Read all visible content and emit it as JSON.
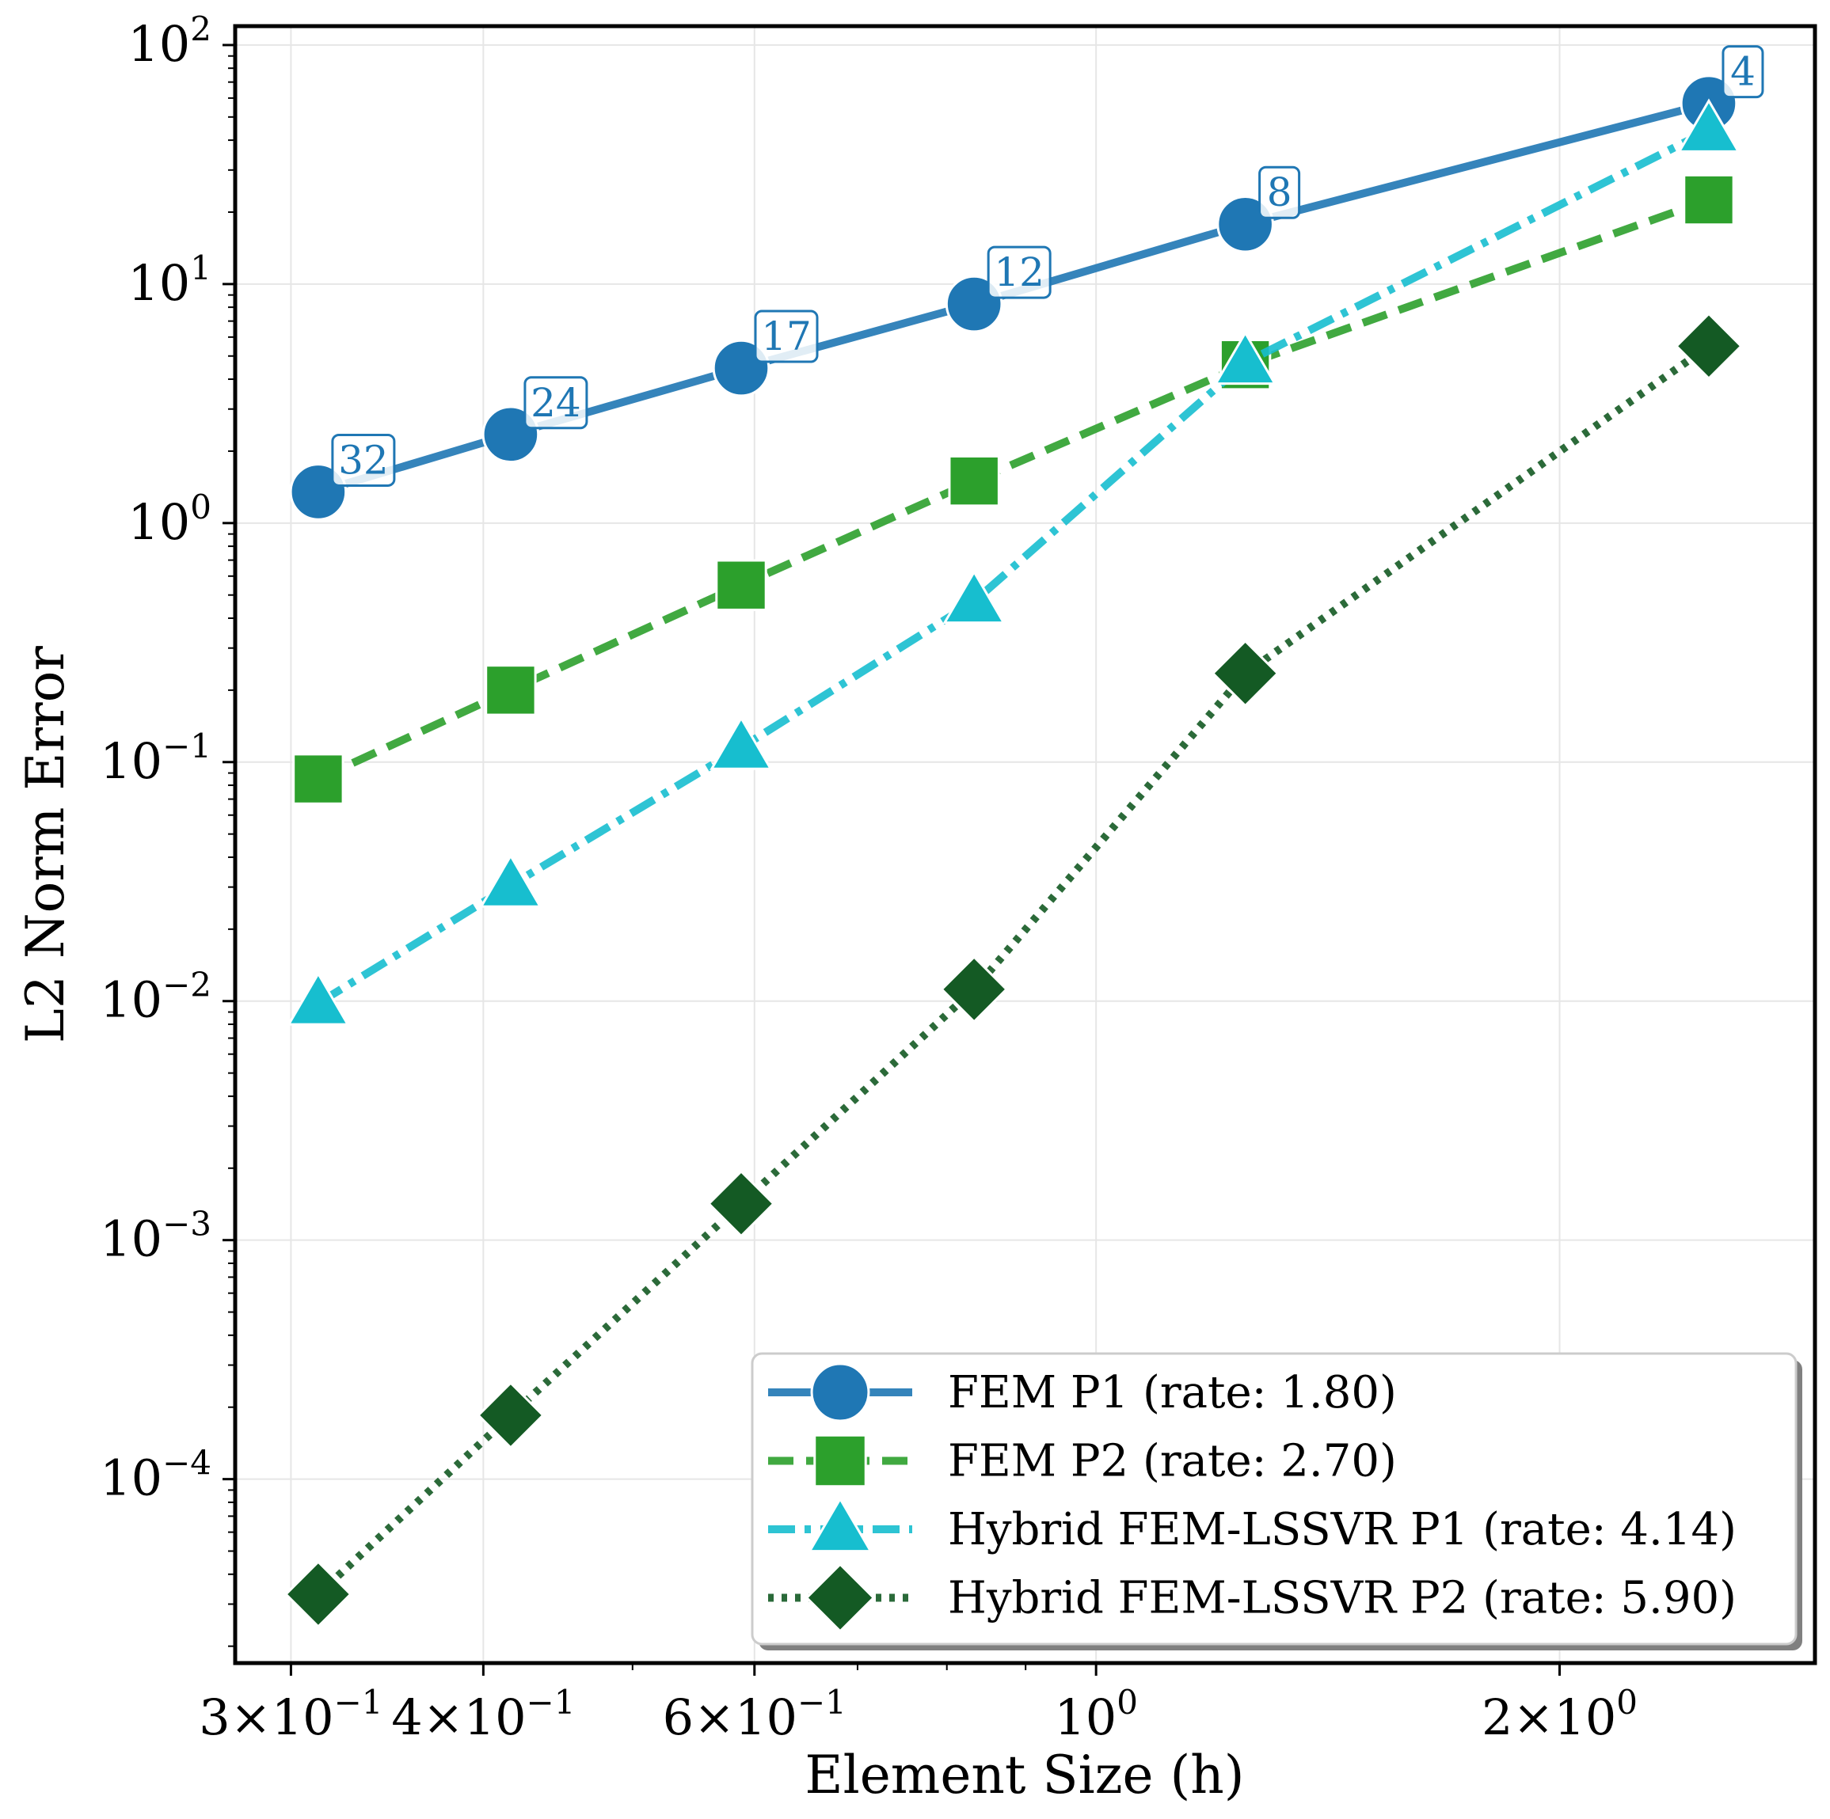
{
  "chart_data": {
    "type": "line",
    "title": "",
    "xlabel": "Element Size (h)",
    "ylabel": "L2 Norm Error",
    "xscale": "log",
    "yscale": "log",
    "xlim": [
      0.276,
      2.93
    ],
    "ylim": [
      1.7e-05,
      120
    ],
    "grid": true,
    "legend_position": "lower-right",
    "x": [
      0.3125,
      0.4167,
      0.5882,
      0.8333,
      1.25,
      2.5
    ],
    "x_ticks": [
      {
        "value": 0.3,
        "mant": "3×10",
        "exp": "−1"
      },
      {
        "value": 0.4,
        "mant": "4×10",
        "exp": "−1"
      },
      {
        "value": 0.6,
        "mant": "6×10",
        "exp": "−1"
      },
      {
        "value": 1.0,
        "mant": "10",
        "exp": "0"
      },
      {
        "value": 2.0,
        "mant": "2×10",
        "exp": "0"
      }
    ],
    "y_ticks": [
      {
        "value": 100,
        "mant": "10",
        "exp": "2"
      },
      {
        "value": 10,
        "mant": "10",
        "exp": "1"
      },
      {
        "value": 1,
        "mant": "10",
        "exp": "0"
      },
      {
        "value": 0.1,
        "mant": "10",
        "exp": "−1"
      },
      {
        "value": 0.01,
        "mant": "10",
        "exp": "−2"
      },
      {
        "value": 0.001,
        "mant": "10",
        "exp": "−3"
      },
      {
        "value": 0.0001,
        "mant": "10",
        "exp": "−4"
      }
    ],
    "point_labels": [
      "32",
      "24",
      "17",
      "12",
      "8",
      "4"
    ],
    "series": [
      {
        "name": "FEM P1 (rate: 1.80)",
        "color": "#1f77b4",
        "dash": "solid",
        "marker": "circle",
        "values": [
          1.35,
          2.35,
          4.45,
          8.25,
          17.8,
          57.0
        ]
      },
      {
        "name": "FEM P2 (rate: 2.70)",
        "color": "#2ca02c",
        "dash": "dashed",
        "marker": "square",
        "values": [
          0.085,
          0.2,
          0.55,
          1.5,
          4.6,
          22.5
        ]
      },
      {
        "name": "Hybrid FEM-LSSVR P1 (rate: 4.14)",
        "color": "#17becf",
        "dash": "dashdot",
        "marker": "triangle",
        "values": [
          0.0098,
          0.0305,
          0.115,
          0.47,
          4.7,
          44.0
        ]
      },
      {
        "name": "Hybrid FEM-LSSVR P2 (rate: 5.90)",
        "color": "#145a24",
        "dash": "dotted",
        "marker": "diamond",
        "values": [
          3.3e-05,
          0.000185,
          0.00142,
          0.0112,
          0.235,
          5.5
        ]
      }
    ]
  }
}
